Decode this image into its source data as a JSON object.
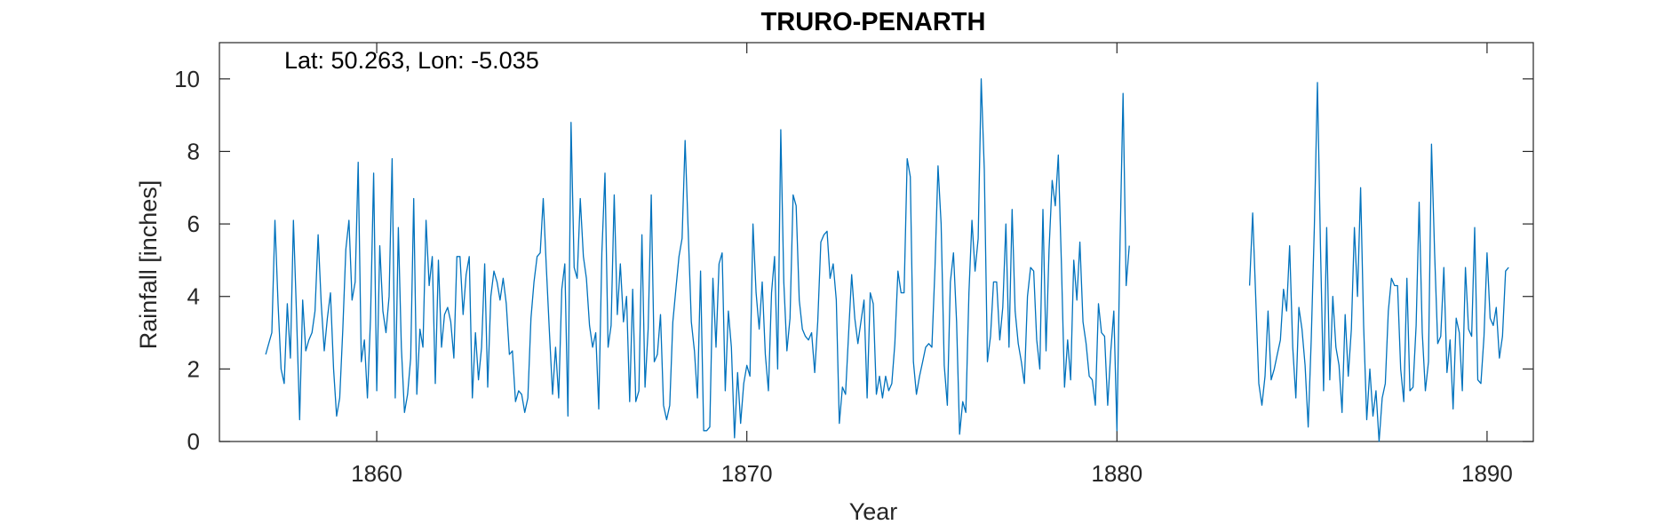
{
  "chart_data": {
    "type": "line",
    "title": "TRURO-PENARTH",
    "xlabel": "Year",
    "ylabel": "Rainfall [inches]",
    "annotation": "Lat: 50.263, Lon: -5.035",
    "xlim": [
      1855.75,
      1891.25
    ],
    "ylim": [
      0,
      11
    ],
    "xticks": [
      1860,
      1870,
      1880,
      1890
    ],
    "yticks": [
      0,
      2,
      4,
      6,
      8,
      10
    ],
    "grid": false,
    "box": true,
    "line_color": "#0072BD",
    "series": [
      {
        "start_year": 1857.0,
        "step": 0.0833333,
        "values": [
          2.4,
          2.7,
          3.0,
          6.1,
          3.8,
          2.0,
          1.6,
          3.8,
          2.3,
          6.1,
          3.5,
          0.6,
          3.9,
          2.5,
          2.8,
          3.0,
          3.6,
          5.7,
          3.8,
          2.5,
          3.4,
          4.1,
          2.0,
          0.7,
          1.2,
          3.1,
          5.3,
          6.1,
          3.9,
          4.4,
          7.7,
          2.2,
          2.8,
          1.2,
          3.4,
          7.4,
          1.4,
          5.4,
          3.6,
          3.0,
          4.0,
          7.8,
          1.2,
          5.9,
          2.6,
          0.8,
          1.3,
          2.3,
          6.7,
          1.3,
          3.1,
          2.6,
          6.1,
          4.3,
          5.1,
          1.6,
          5.0,
          2.6,
          3.5,
          3.7,
          3.3,
          2.3,
          5.1,
          5.1,
          3.5,
          4.6,
          5.1,
          1.2,
          3.0,
          1.7,
          2.6,
          4.9,
          1.5,
          4.0,
          4.7,
          4.4,
          3.9,
          4.5,
          3.8,
          2.4,
          2.5,
          1.1,
          1.4,
          1.3,
          0.8,
          1.2,
          3.4,
          4.4,
          5.1,
          5.2,
          6.7,
          4.8,
          3.0,
          1.3,
          2.6,
          1.2,
          4.2,
          4.9,
          0.7,
          8.8,
          4.8,
          4.5,
          6.7,
          5.1,
          4.5,
          3.2,
          2.6,
          3.0,
          0.9,
          5.2,
          7.4,
          2.6,
          3.2,
          6.8,
          3.5,
          4.9,
          3.3,
          4.0,
          1.1,
          4.2,
          1.1,
          1.4,
          5.7,
          1.5,
          3.1,
          6.8,
          2.2,
          2.4,
          3.5,
          1.0,
          0.6,
          1.0,
          3.3,
          4.2,
          5.1,
          5.6,
          8.3,
          5.8,
          3.3,
          2.5,
          1.2,
          4.7,
          0.3,
          0.3,
          0.4,
          4.5,
          2.6,
          4.9,
          5.2,
          1.4,
          3.6,
          2.6,
          0.1,
          1.9,
          0.5,
          1.6,
          2.1,
          1.8,
          6.0,
          4.1,
          3.1,
          4.4,
          2.4,
          1.4,
          4.1,
          5.1,
          2.0,
          8.6,
          4.4,
          2.5,
          3.4,
          6.8,
          6.5,
          3.9,
          3.1,
          2.9,
          2.8,
          3.0,
          1.9,
          3.3,
          5.5,
          5.7,
          5.8,
          4.5,
          4.9,
          3.9,
          0.5,
          1.5,
          1.3,
          3.0,
          4.6,
          3.4,
          2.7,
          3.3,
          3.9,
          1.2,
          4.1,
          3.8,
          1.3,
          1.8,
          1.2,
          1.8,
          1.4,
          1.6,
          2.7,
          4.7,
          4.1,
          4.1,
          7.8,
          7.3,
          2.2,
          1.3,
          1.8,
          2.2,
          2.6,
          2.7,
          2.6,
          4.8,
          7.6,
          6.0,
          2.1,
          1.0,
          4.4,
          5.2,
          3.3,
          0.2,
          1.1,
          0.8,
          4.1,
          6.1,
          4.7,
          5.6,
          10.0,
          7.5,
          2.2,
          2.9,
          4.4,
          4.4,
          2.8,
          3.7,
          6.0,
          2.6,
          6.4,
          3.6,
          2.7,
          2.2,
          1.6,
          4.0,
          4.8,
          4.7,
          2.8,
          2.0,
          6.4,
          2.5,
          5.3,
          7.2,
          6.5,
          7.9,
          4.9,
          1.5,
          2.8,
          1.7,
          5.0,
          3.9,
          5.5,
          3.3,
          2.7,
          1.8,
          1.7,
          1.0,
          3.8,
          3.0,
          2.9,
          1.0,
          2.5,
          3.6,
          0.3,
          5.5,
          9.6,
          4.3,
          5.4
        ]
      },
      {
        "start_year": 1883.58333,
        "step": 0.0833333,
        "values": [
          4.3,
          6.3,
          4.0,
          1.6,
          1.0,
          1.8,
          3.6,
          1.7,
          2.0,
          2.4,
          2.8,
          4.2,
          3.6,
          5.4,
          2.6,
          1.2,
          3.7,
          3.1,
          2.1,
          0.4,
          2.8,
          5.9,
          9.9,
          5.4,
          1.4,
          5.9,
          1.7,
          4.0,
          2.6,
          2.1,
          0.8,
          3.5,
          1.8,
          3.1,
          5.9,
          4.0,
          7.0,
          3.2,
          0.6,
          2.0,
          0.7,
          1.4,
          0.0,
          1.2,
          1.6,
          3.6,
          4.5,
          4.3,
          4.3,
          2.0,
          1.1,
          4.5,
          1.4,
          1.5,
          3.2,
          6.6,
          3.0,
          1.4,
          2.2,
          8.2,
          5.2,
          2.7,
          2.9,
          4.8,
          1.9,
          2.8,
          0.9,
          3.4,
          3.0,
          1.4,
          4.8,
          3.1,
          2.9,
          5.9,
          1.7,
          1.6,
          2.9,
          5.2,
          3.4,
          3.2,
          3.7,
          2.3,
          2.9,
          4.7,
          4.8
        ]
      }
    ]
  }
}
